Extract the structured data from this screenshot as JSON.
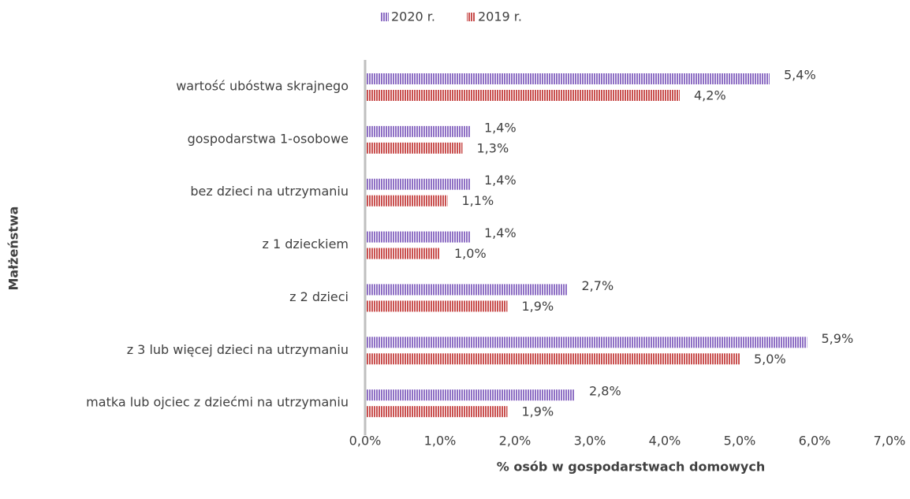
{
  "chart_data": {
    "type": "bar",
    "orientation": "horizontal",
    "y_label": "Małżeństwa",
    "x_label": "% osób w gospodarstwach domowych",
    "categories": [
      "wartość ubóstwa skrajnego",
      "gospodarstwa 1-osobowe",
      "bez dzieci na utrzymaniu",
      "z 1 dzieckiem",
      "z 2 dzieci",
      "z 3 lub więcej dzieci na utrzymaniu",
      "matka lub ojciec z dziećmi na utrzymaniu"
    ],
    "series": [
      {
        "name": "2020 r.",
        "color": "#8e6fc4",
        "values": [
          5.4,
          1.4,
          1.4,
          1.4,
          2.7,
          5.9,
          2.8
        ],
        "value_labels": [
          "5,4%",
          "1,4%",
          "1,4%",
          "1,4%",
          "2,7%",
          "5,9%",
          "2,8%"
        ]
      },
      {
        "name": "2019 r.",
        "color": "#c9504f",
        "values": [
          4.2,
          1.3,
          1.1,
          1.0,
          1.9,
          5.0,
          1.9
        ],
        "value_labels": [
          "4,2%",
          "1,3%",
          "1,1%",
          "1,0%",
          "1,9%",
          "5,0%",
          "1,9%"
        ]
      }
    ],
    "xlim": [
      0,
      7
    ],
    "xticks": [
      {
        "value": 0,
        "label": "0,0%"
      },
      {
        "value": 1,
        "label": "1,0%"
      },
      {
        "value": 2,
        "label": "2,0%"
      },
      {
        "value": 3,
        "label": "3,0%"
      },
      {
        "value": 4,
        "label": "4,0%"
      },
      {
        "value": 5,
        "label": "5,0%"
      },
      {
        "value": 6,
        "label": "6,0%"
      },
      {
        "value": 7,
        "label": "7,0%"
      }
    ],
    "legend": "top"
  }
}
